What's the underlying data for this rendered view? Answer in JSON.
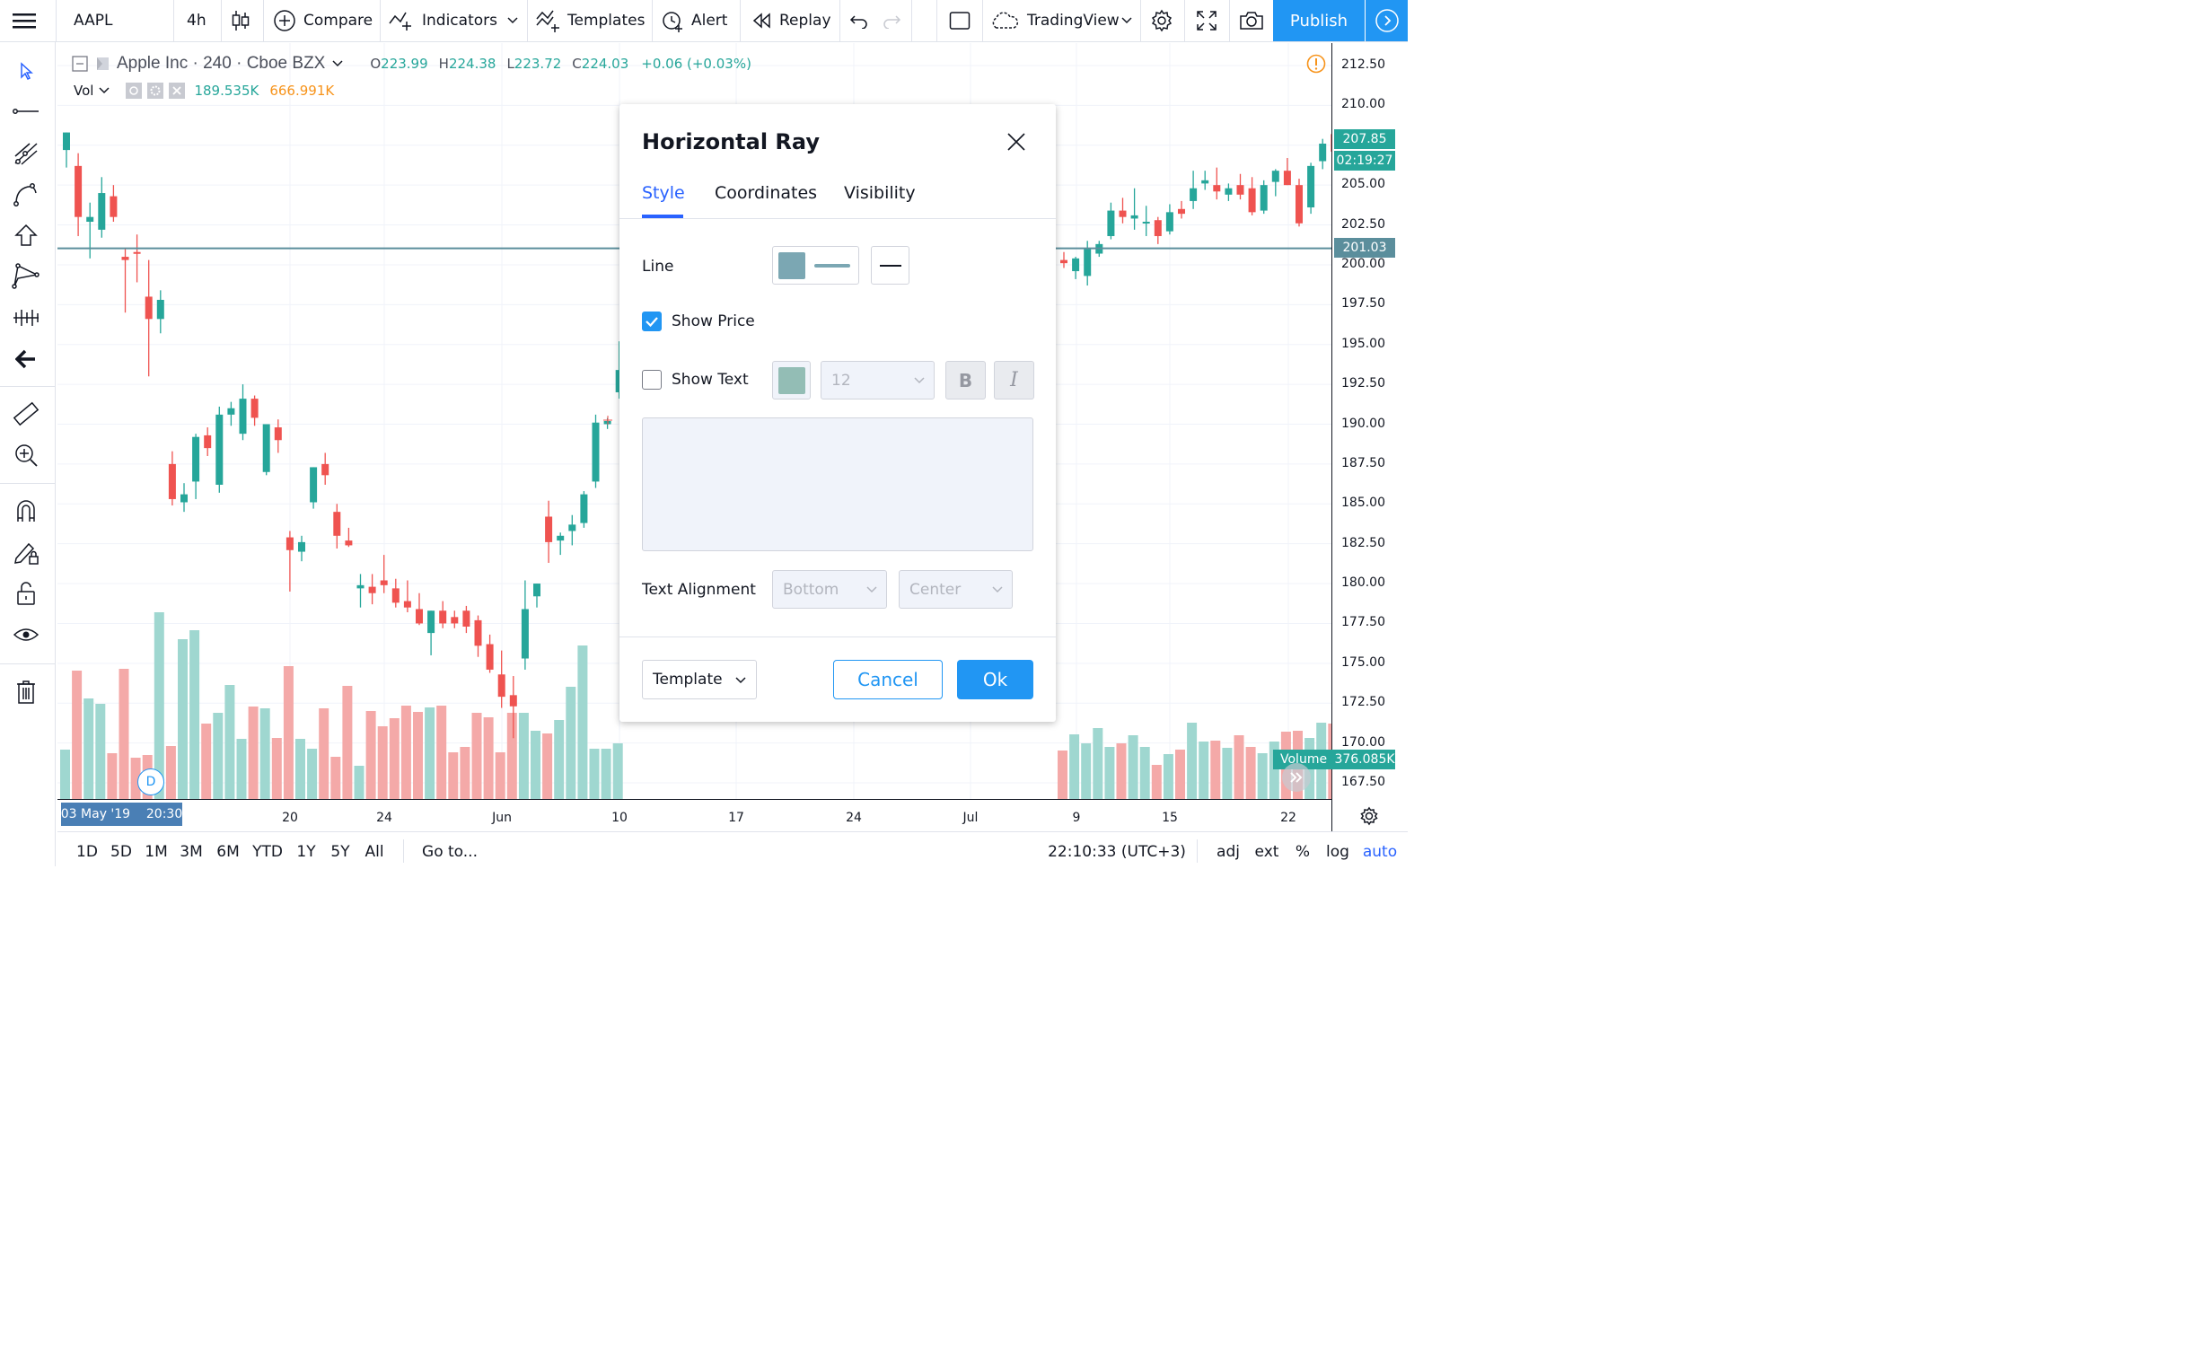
{
  "toolbar": {
    "symbol": "AAPL",
    "interval": "4h",
    "compare_label": "Compare",
    "indicators_label": "Indicators",
    "templates_label": "Templates",
    "alert_label": "Alert",
    "replay_label": "Replay",
    "layout_name": "TradingView",
    "publish_label": "Publish"
  },
  "legend": {
    "title": "Apple Inc · 240 · Cboe BZX",
    "open_key": "O",
    "open": "223.99",
    "high_key": "H",
    "high": "224.38",
    "low_key": "L",
    "low": "223.72",
    "close_key": "C",
    "close": "224.03",
    "change": "+0.06 (+0.03%)",
    "vol_label": "Vol",
    "vol_value_1": "189.535K",
    "vol_value_2": "666.991K"
  },
  "price_axis": {
    "ticks": [
      "212.50",
      "210.00",
      "207.50",
      "205.00",
      "202.50",
      "200.00",
      "197.50",
      "195.00",
      "192.50",
      "190.00",
      "187.50",
      "185.00",
      "182.50",
      "180.00",
      "177.50",
      "175.00",
      "172.50",
      "170.00",
      "167.50"
    ],
    "last_price": "207.85",
    "countdown": "02:19:27",
    "ray_price": "201.03",
    "volume_label": "Volume",
    "volume_value": "376.085K"
  },
  "time_axis": {
    "labels": [
      "20",
      "24",
      "Jun",
      "10",
      "17",
      "24",
      "Jul",
      "9",
      "15",
      "22"
    ],
    "crosshair_label": "03 May '19    20:30",
    "d_badge": "D"
  },
  "bottom_bar": {
    "ranges": [
      "1D",
      "5D",
      "1M",
      "3M",
      "6M",
      "YTD",
      "1Y",
      "5Y",
      "All"
    ],
    "goto_label": "Go to...",
    "clock": "22:10:33 (UTC+3)",
    "adj": "adj",
    "ext": "ext",
    "percent": "%",
    "log": "log",
    "auto": "auto"
  },
  "dialog": {
    "title": "Horizontal Ray",
    "tabs": [
      "Style",
      "Coordinates",
      "Visibility"
    ],
    "active_tab": "Style",
    "line_label": "Line",
    "show_price_label": "Show Price",
    "show_price_checked": true,
    "show_text_label": "Show Text",
    "show_text_checked": false,
    "font_size": "12",
    "bold_label": "B",
    "italic_label": "I",
    "text_alignment_label": "Text Alignment",
    "vertical_align": "Bottom",
    "horizontal_align": "Center",
    "template_label": "Template",
    "cancel_label": "Cancel",
    "ok_label": "Ok"
  },
  "colors": {
    "up": "#26a69a",
    "down": "#ef5350",
    "vol_up": "#9fd7d0",
    "vol_down": "#f4a9a8",
    "ray": "#5b8e9c",
    "accent": "#2962ff",
    "ok_button": "#2196f3"
  },
  "chart_data": {
    "type": "candlestick",
    "title": "Apple Inc · 240 · Cboe BZX",
    "price_range": [
      166.5,
      213.0
    ],
    "horizontal_ray_price": 201.03,
    "last_price": 207.85,
    "candles_left": [
      {
        "o": 207.2,
        "h": 207.8,
        "l": 206.1,
        "c": 208.3
      },
      {
        "o": 206.2,
        "h": 207.0,
        "l": 201.8,
        "c": 203.0
      },
      {
        "o": 202.7,
        "h": 203.9,
        "l": 200.4,
        "c": 203.0
      },
      {
        "o": 202.2,
        "h": 205.5,
        "l": 201.7,
        "c": 204.5
      },
      {
        "o": 204.3,
        "h": 205.0,
        "l": 202.7,
        "c": 203.0
      },
      {
        "o": 200.5,
        "h": 201.0,
        "l": 197.0,
        "c": 200.3
      },
      {
        "o": 200.8,
        "h": 201.9,
        "l": 198.9,
        "c": 200.7
      },
      {
        "o": 198.0,
        "h": 200.3,
        "l": 193.0,
        "c": 196.6
      },
      {
        "o": 196.6,
        "h": 198.4,
        "l": 195.7,
        "c": 197.8
      },
      {
        "o": 187.5,
        "h": 188.3,
        "l": 184.9,
        "c": 185.3
      },
      {
        "o": 185.1,
        "h": 186.3,
        "l": 184.5,
        "c": 185.6
      },
      {
        "o": 186.4,
        "h": 189.4,
        "l": 185.3,
        "c": 189.2
      },
      {
        "o": 189.3,
        "h": 189.8,
        "l": 188.0,
        "c": 188.5
      },
      {
        "o": 186.2,
        "h": 191.1,
        "l": 185.7,
        "c": 190.6
      },
      {
        "o": 190.6,
        "h": 191.4,
        "l": 189.9,
        "c": 191.0
      },
      {
        "o": 189.4,
        "h": 192.5,
        "l": 189.0,
        "c": 191.6
      },
      {
        "o": 191.6,
        "h": 191.8,
        "l": 189.9,
        "c": 190.4
      },
      {
        "o": 187.0,
        "h": 190.0,
        "l": 186.8,
        "c": 190.0
      },
      {
        "o": 189.8,
        "h": 190.3,
        "l": 188.2,
        "c": 189.0
      },
      {
        "o": 182.9,
        "h": 183.3,
        "l": 179.5,
        "c": 182.1
      },
      {
        "o": 182.0,
        "h": 183.0,
        "l": 181.4,
        "c": 182.6
      },
      {
        "o": 185.1,
        "h": 187.3,
        "l": 184.7,
        "c": 187.3
      },
      {
        "o": 187.5,
        "h": 188.2,
        "l": 186.2,
        "c": 186.8
      },
      {
        "o": 184.5,
        "h": 185.0,
        "l": 182.2,
        "c": 183.0
      },
      {
        "o": 182.7,
        "h": 183.5,
        "l": 182.3,
        "c": 182.4
      },
      {
        "o": 179.7,
        "h": 180.6,
        "l": 178.5,
        "c": 179.9
      },
      {
        "o": 179.8,
        "h": 180.6,
        "l": 178.7,
        "c": 179.4
      },
      {
        "o": 180.2,
        "h": 181.8,
        "l": 179.4,
        "c": 179.9
      },
      {
        "o": 179.7,
        "h": 180.3,
        "l": 178.5,
        "c": 178.8
      },
      {
        "o": 178.9,
        "h": 180.2,
        "l": 178.2,
        "c": 178.5
      },
      {
        "o": 178.4,
        "h": 179.4,
        "l": 177.4,
        "c": 177.5
      },
      {
        "o": 176.9,
        "h": 178.0,
        "l": 175.5,
        "c": 178.3
      },
      {
        "o": 178.3,
        "h": 178.9,
        "l": 177.2,
        "c": 177.5
      },
      {
        "o": 177.9,
        "h": 178.3,
        "l": 177.2,
        "c": 177.5
      },
      {
        "o": 178.3,
        "h": 178.6,
        "l": 176.9,
        "c": 177.3
      },
      {
        "o": 177.7,
        "h": 178.0,
        "l": 175.4,
        "c": 176.1
      },
      {
        "o": 176.2,
        "h": 176.8,
        "l": 174.4,
        "c": 174.6
      },
      {
        "o": 174.3,
        "h": 175.8,
        "l": 172.2,
        "c": 172.9
      },
      {
        "o": 173.0,
        "h": 174.2,
        "l": 170.3,
        "c": 172.3
      },
      {
        "o": 175.3,
        "h": 180.2,
        "l": 174.6,
        "c": 178.4
      },
      {
        "o": 179.2,
        "h": 180.0,
        "l": 178.5,
        "c": 180.0
      },
      {
        "o": 184.2,
        "h": 185.2,
        "l": 181.3,
        "c": 182.6
      },
      {
        "o": 182.7,
        "h": 183.2,
        "l": 181.8,
        "c": 183.0
      },
      {
        "o": 183.3,
        "h": 184.3,
        "l": 182.4,
        "c": 183.7
      },
      {
        "o": 183.8,
        "h": 185.8,
        "l": 183.5,
        "c": 185.6
      },
      {
        "o": 186.4,
        "h": 190.6,
        "l": 186.0,
        "c": 190.1
      },
      {
        "o": 190.0,
        "h": 190.4,
        "l": 189.7,
        "c": 190.2
      },
      {
        "o": 192.0,
        "h": 195.2,
        "l": 191.6,
        "c": 193.4
      }
    ],
    "candles_right": [
      {
        "o": 200.3,
        "h": 200.8,
        "l": 199.8,
        "c": 200.1
      },
      {
        "o": 199.6,
        "h": 200.5,
        "l": 199.1,
        "c": 200.4
      },
      {
        "o": 199.3,
        "h": 201.5,
        "l": 198.7,
        "c": 201.0
      },
      {
        "o": 200.7,
        "h": 201.5,
        "l": 200.5,
        "c": 201.3
      },
      {
        "o": 201.8,
        "h": 203.9,
        "l": 201.6,
        "c": 203.4
      },
      {
        "o": 203.4,
        "h": 204.2,
        "l": 202.6,
        "c": 203.0
      },
      {
        "o": 202.9,
        "h": 204.8,
        "l": 202.2,
        "c": 203.1
      },
      {
        "o": 202.7,
        "h": 203.7,
        "l": 201.8,
        "c": 202.7
      },
      {
        "o": 202.8,
        "h": 203.0,
        "l": 201.3,
        "c": 201.8
      },
      {
        "o": 202.1,
        "h": 203.8,
        "l": 201.9,
        "c": 203.3
      },
      {
        "o": 203.5,
        "h": 204.0,
        "l": 202.9,
        "c": 203.2
      },
      {
        "o": 204.0,
        "h": 205.9,
        "l": 203.5,
        "c": 204.8
      },
      {
        "o": 205.1,
        "h": 205.9,
        "l": 204.7,
        "c": 205.3
      },
      {
        "o": 205.0,
        "h": 206.1,
        "l": 204.1,
        "c": 204.6
      },
      {
        "o": 204.4,
        "h": 205.1,
        "l": 204.0,
        "c": 204.8
      },
      {
        "o": 205.0,
        "h": 205.7,
        "l": 204.1,
        "c": 204.4
      },
      {
        "o": 204.8,
        "h": 205.5,
        "l": 203.1,
        "c": 203.3
      },
      {
        "o": 203.4,
        "h": 205.3,
        "l": 203.2,
        "c": 205.0
      },
      {
        "o": 205.2,
        "h": 206.0,
        "l": 204.3,
        "c": 205.9
      },
      {
        "o": 205.9,
        "h": 206.7,
        "l": 205.5,
        "c": 205.0
      },
      {
        "o": 205.0,
        "h": 205.4,
        "l": 202.4,
        "c": 202.6
      },
      {
        "o": 203.6,
        "h": 206.4,
        "l": 203.2,
        "c": 206.2
      },
      {
        "o": 206.5,
        "h": 207.9,
        "l": 206.0,
        "c": 207.6
      },
      {
        "o": 208.2,
        "h": 208.6,
        "l": 206.9,
        "c": 207.1
      },
      {
        "o": 206.9,
        "h": 208.6,
        "l": 206.5,
        "c": 207.9
      }
    ]
  }
}
